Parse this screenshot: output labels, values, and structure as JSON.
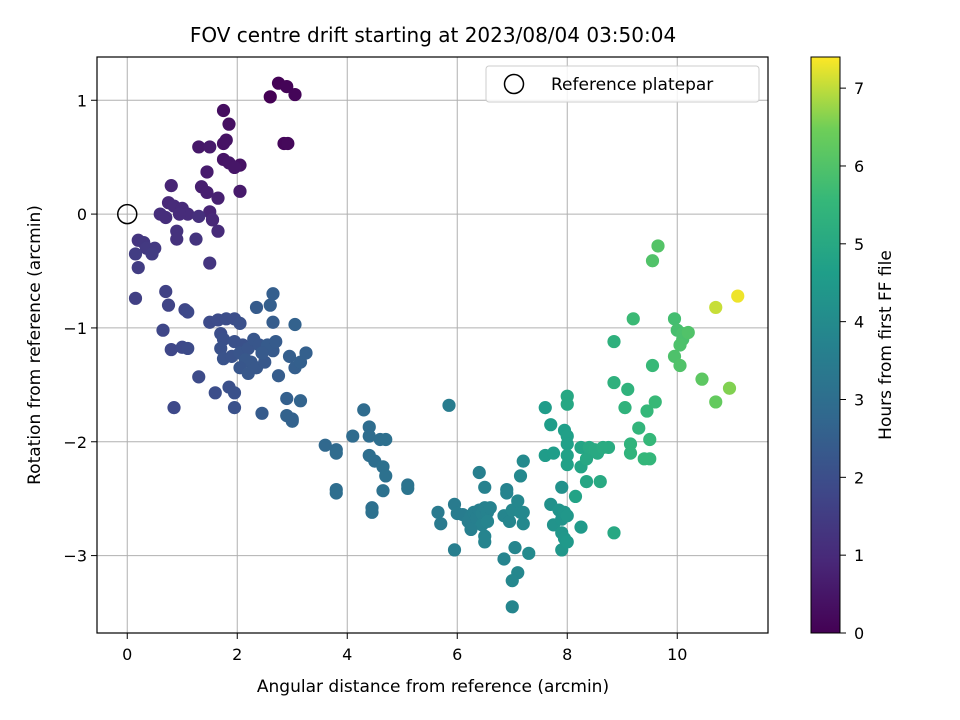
{
  "chart_data": {
    "type": "scatter",
    "title": "FOV centre drift starting at 2023/08/04 03:50:04",
    "xlabel": "Angular distance from reference (arcmin)",
    "ylabel": "Rotation from reference (arcmin)",
    "xlim": [
      -0.55,
      11.65
    ],
    "ylim": [
      -3.68,
      1.38
    ],
    "xticks": [
      0,
      2,
      4,
      6,
      8,
      10
    ],
    "yticks": [
      -3,
      -2,
      -1,
      0,
      1
    ],
    "grid": true,
    "legend": {
      "placement": "upper-right",
      "entries": [
        "Reference platepar"
      ]
    },
    "reference_point": {
      "x": 0,
      "y": 0,
      "marker": "open-circle"
    },
    "colorbar": {
      "label": "Hours from first FF file",
      "colormap": "viridis",
      "range": [
        0,
        7.4
      ],
      "ticks": [
        0,
        1,
        2,
        3,
        4,
        5,
        6,
        7
      ]
    },
    "points": [
      [
        2.6,
        1.03,
        0.0
      ],
      [
        2.75,
        1.15,
        0.05
      ],
      [
        2.9,
        1.12,
        0.08
      ],
      [
        3.05,
        1.05,
        0.1
      ],
      [
        2.85,
        0.62,
        0.15
      ],
      [
        2.92,
        0.62,
        0.18
      ],
      [
        1.75,
        0.91,
        0.3
      ],
      [
        1.85,
        0.79,
        0.35
      ],
      [
        1.75,
        0.62,
        0.4
      ],
      [
        1.8,
        0.65,
        0.42
      ],
      [
        1.3,
        0.59,
        0.55
      ],
      [
        1.5,
        0.59,
        0.6
      ],
      [
        2.05,
        0.43,
        0.4
      ],
      [
        1.75,
        0.48,
        0.45
      ],
      [
        1.85,
        0.45,
        0.5
      ],
      [
        1.95,
        0.41,
        0.5
      ],
      [
        1.45,
        0.37,
        0.65
      ],
      [
        2.05,
        0.2,
        0.6
      ],
      [
        1.35,
        0.24,
        0.7
      ],
      [
        1.45,
        0.19,
        0.72
      ],
      [
        1.65,
        0.14,
        0.75
      ],
      [
        0.8,
        0.25,
        0.85
      ],
      [
        1.5,
        0.02,
        0.85
      ],
      [
        1.55,
        -0.05,
        0.9
      ],
      [
        0.75,
        0.1,
        0.95
      ],
      [
        0.85,
        0.07,
        1.0
      ],
      [
        1.0,
        0.05,
        1.0
      ],
      [
        1.1,
        0.0,
        1.05
      ],
      [
        0.95,
        0.0,
        1.05
      ],
      [
        0.6,
        0.0,
        1.1
      ],
      [
        0.7,
        -0.03,
        1.1
      ],
      [
        1.3,
        -0.02,
        1.15
      ],
      [
        1.55,
        -0.05,
        0.95
      ],
      [
        1.65,
        -0.15,
        1.0
      ],
      [
        0.9,
        -0.15,
        1.2
      ],
      [
        0.9,
        -0.22,
        1.2
      ],
      [
        1.25,
        -0.22,
        1.25
      ],
      [
        1.5,
        -0.43,
        1.3
      ],
      [
        0.2,
        -0.23,
        1.3
      ],
      [
        0.3,
        -0.25,
        1.35
      ],
      [
        0.5,
        -0.3,
        1.4
      ],
      [
        0.35,
        -0.3,
        1.4
      ],
      [
        0.45,
        -0.35,
        1.45
      ],
      [
        0.15,
        -0.35,
        1.5
      ],
      [
        0.2,
        -0.47,
        1.5
      ],
      [
        0.15,
        -0.74,
        1.6
      ],
      [
        0.7,
        -0.68,
        1.65
      ],
      [
        0.75,
        -0.8,
        1.7
      ],
      [
        1.05,
        -0.84,
        1.8
      ],
      [
        1.1,
        -0.86,
        1.85
      ],
      [
        0.65,
        -1.02,
        1.8
      ],
      [
        1.5,
        -0.95,
        1.9
      ],
      [
        0.8,
        -1.19,
        1.8
      ],
      [
        1.0,
        -1.17,
        1.85
      ],
      [
        1.1,
        -1.18,
        1.9
      ],
      [
        1.65,
        -0.93,
        1.95
      ],
      [
        1.8,
        -0.92,
        2.0
      ],
      [
        1.95,
        -0.92,
        2.0
      ],
      [
        2.05,
        -0.96,
        2.05
      ],
      [
        1.7,
        -1.05,
        2.0
      ],
      [
        1.75,
        -1.1,
        2.05
      ],
      [
        1.95,
        -1.12,
        2.1
      ],
      [
        2.1,
        -1.15,
        2.1
      ],
      [
        1.7,
        -1.18,
        2.1
      ],
      [
        1.75,
        -1.27,
        2.15
      ],
      [
        1.9,
        -1.25,
        2.15
      ],
      [
        2.05,
        -1.22,
        2.2
      ],
      [
        2.2,
        -1.18,
        2.2
      ],
      [
        2.3,
        -1.1,
        2.25
      ],
      [
        2.4,
        -1.15,
        2.25
      ],
      [
        2.25,
        -1.3,
        2.3
      ],
      [
        2.35,
        -1.35,
        2.3
      ],
      [
        2.5,
        -1.3,
        2.3
      ],
      [
        2.65,
        -1.2,
        2.35
      ],
      [
        2.55,
        -1.15,
        2.4
      ],
      [
        2.7,
        -1.12,
        2.4
      ],
      [
        2.45,
        -1.22,
        2.35
      ],
      [
        2.15,
        -1.28,
        2.3
      ],
      [
        2.05,
        -1.35,
        2.25
      ],
      [
        2.2,
        -1.4,
        2.3
      ],
      [
        2.75,
        -1.42,
        2.45
      ],
      [
        2.95,
        -1.25,
        2.5
      ],
      [
        3.05,
        -1.35,
        2.5
      ],
      [
        3.15,
        -1.3,
        2.55
      ],
      [
        3.25,
        -1.22,
        2.55
      ],
      [
        3.05,
        -0.97,
        2.6
      ],
      [
        2.65,
        -0.95,
        2.45
      ],
      [
        2.6,
        -0.8,
        2.5
      ],
      [
        2.65,
        -0.7,
        2.5
      ],
      [
        2.35,
        -0.82,
        2.4
      ],
      [
        1.3,
        -1.43,
        1.9
      ],
      [
        1.6,
        -1.57,
        2.0
      ],
      [
        1.85,
        -1.52,
        2.05
      ],
      [
        1.95,
        -1.57,
        2.1
      ],
      [
        1.95,
        -1.7,
        2.1
      ],
      [
        0.85,
        -1.7,
        1.85
      ],
      [
        2.45,
        -1.75,
        2.4
      ],
      [
        2.9,
        -1.62,
        2.55
      ],
      [
        2.9,
        -1.77,
        2.6
      ],
      [
        3.0,
        -1.82,
        2.65
      ],
      [
        3.15,
        -1.64,
        2.65
      ],
      [
        3.0,
        -1.8,
        2.6
      ],
      [
        3.6,
        -2.03,
        2.8
      ],
      [
        3.8,
        -2.07,
        2.85
      ],
      [
        3.8,
        -2.1,
        2.9
      ],
      [
        4.1,
        -1.95,
        2.9
      ],
      [
        4.3,
        -1.72,
        2.9
      ],
      [
        4.4,
        -1.87,
        2.95
      ],
      [
        4.4,
        -1.95,
        2.95
      ],
      [
        4.6,
        -1.98,
        3.0
      ],
      [
        4.7,
        -1.98,
        3.05
      ],
      [
        4.4,
        -2.12,
        3.0
      ],
      [
        4.5,
        -2.17,
        3.0
      ],
      [
        4.65,
        -2.22,
        3.05
      ],
      [
        4.7,
        -2.3,
        3.1
      ],
      [
        3.8,
        -2.42,
        2.95
      ],
      [
        3.8,
        -2.45,
        3.0
      ],
      [
        4.45,
        -2.58,
        3.05
      ],
      [
        4.45,
        -2.62,
        3.1
      ],
      [
        4.65,
        -2.43,
        3.1
      ],
      [
        5.1,
        -2.38,
        3.15
      ],
      [
        5.1,
        -2.41,
        3.2
      ],
      [
        5.85,
        -1.68,
        3.5
      ],
      [
        5.65,
        -2.62,
        3.4
      ],
      [
        5.7,
        -2.72,
        3.4
      ],
      [
        5.95,
        -2.55,
        3.45
      ],
      [
        6.0,
        -2.63,
        3.5
      ],
      [
        6.1,
        -2.64,
        3.5
      ],
      [
        6.2,
        -2.7,
        3.55
      ],
      [
        6.25,
        -2.65,
        3.55
      ],
      [
        6.3,
        -2.62,
        3.6
      ],
      [
        6.35,
        -2.67,
        3.6
      ],
      [
        6.4,
        -2.6,
        3.6
      ],
      [
        6.45,
        -2.63,
        3.65
      ],
      [
        6.5,
        -2.58,
        3.65
      ],
      [
        6.55,
        -2.62,
        3.7
      ],
      [
        6.6,
        -2.58,
        3.7
      ],
      [
        6.45,
        -2.73,
        3.7
      ],
      [
        6.5,
        -2.83,
        3.75
      ],
      [
        6.5,
        -2.88,
        3.75
      ],
      [
        6.55,
        -2.7,
        3.75
      ],
      [
        6.4,
        -2.27,
        3.6
      ],
      [
        6.5,
        -2.4,
        3.65
      ],
      [
        6.25,
        -2.77,
        3.6
      ],
      [
        5.95,
        -2.95,
        3.55
      ],
      [
        6.9,
        -2.42,
        3.7
      ],
      [
        6.9,
        -2.45,
        3.75
      ],
      [
        6.85,
        -2.65,
        3.8
      ],
      [
        6.95,
        -2.7,
        3.8
      ],
      [
        7.0,
        -2.6,
        3.85
      ],
      [
        7.1,
        -2.52,
        3.85
      ],
      [
        7.15,
        -2.62,
        3.9
      ],
      [
        7.2,
        -2.72,
        3.9
      ],
      [
        7.15,
        -2.3,
        3.9
      ],
      [
        7.2,
        -2.17,
        3.95
      ],
      [
        7.2,
        -2.62,
        3.9
      ],
      [
        6.85,
        -3.03,
        3.75
      ],
      [
        7.05,
        -2.93,
        3.8
      ],
      [
        7.1,
        -3.15,
        3.85
      ],
      [
        7.0,
        -3.22,
        3.85
      ],
      [
        7.3,
        -2.98,
        3.95
      ],
      [
        7.0,
        -3.45,
        3.8
      ],
      [
        7.9,
        -2.4,
        4.2
      ],
      [
        7.7,
        -2.55,
        4.2
      ],
      [
        7.75,
        -2.73,
        4.25
      ],
      [
        7.85,
        -2.6,
        4.3
      ],
      [
        7.9,
        -2.68,
        4.3
      ],
      [
        7.95,
        -2.62,
        4.35
      ],
      [
        7.9,
        -2.8,
        4.35
      ],
      [
        7.95,
        -2.85,
        4.4
      ],
      [
        7.9,
        -2.95,
        4.4
      ],
      [
        8.0,
        -2.88,
        4.45
      ],
      [
        8.25,
        -2.75,
        4.5
      ],
      [
        8.0,
        -2.65,
        4.4
      ],
      [
        7.6,
        -1.7,
        4.55
      ],
      [
        7.7,
        -1.85,
        4.6
      ],
      [
        7.6,
        -2.12,
        4.55
      ],
      [
        7.75,
        -2.1,
        4.6
      ],
      [
        7.95,
        -1.9,
        4.65
      ],
      [
        8.0,
        -1.95,
        4.7
      ],
      [
        8.0,
        -2.02,
        4.7
      ],
      [
        8.0,
        -2.12,
        4.75
      ],
      [
        8.0,
        -2.2,
        4.75
      ],
      [
        8.15,
        -2.48,
        4.8
      ],
      [
        8.25,
        -2.05,
        4.85
      ],
      [
        8.25,
        -2.22,
        4.85
      ],
      [
        8.35,
        -2.35,
        4.9
      ],
      [
        8.35,
        -2.15,
        4.95
      ],
      [
        8.4,
        -2.05,
        5.0
      ],
      [
        8.55,
        -2.1,
        5.05
      ],
      [
        8.5,
        -2.07,
        5.05
      ],
      [
        8.65,
        -2.05,
        5.1
      ],
      [
        8.75,
        -2.05,
        5.1
      ],
      [
        8.6,
        -2.35,
        5.05
      ],
      [
        8.0,
        -1.6,
        4.95
      ],
      [
        8.0,
        -1.67,
        4.95
      ],
      [
        8.85,
        -1.12,
        5.3
      ],
      [
        8.85,
        -1.48,
        5.3
      ],
      [
        8.85,
        -2.8,
        5.0
      ],
      [
        9.05,
        -1.7,
        5.35
      ],
      [
        9.1,
        -1.54,
        5.35
      ],
      [
        9.15,
        -2.02,
        5.4
      ],
      [
        9.15,
        -2.1,
        5.4
      ],
      [
        9.3,
        -1.88,
        5.45
      ],
      [
        9.4,
        -2.15,
        5.5
      ],
      [
        9.5,
        -2.15,
        5.5
      ],
      [
        9.5,
        -1.98,
        5.55
      ],
      [
        9.45,
        -1.73,
        5.55
      ],
      [
        9.55,
        -1.33,
        5.6
      ],
      [
        9.6,
        -1.65,
        5.6
      ],
      [
        9.2,
        -0.92,
        5.65
      ],
      [
        9.95,
        -0.92,
        5.8
      ],
      [
        10.0,
        -1.02,
        5.85
      ],
      [
        10.1,
        -1.05,
        5.9
      ],
      [
        10.1,
        -1.1,
        5.9
      ],
      [
        10.05,
        -1.15,
        5.95
      ],
      [
        9.95,
        -1.25,
        5.95
      ],
      [
        10.05,
        -1.33,
        6.0
      ],
      [
        10.2,
        -1.04,
        6.0
      ],
      [
        10.45,
        -1.45,
        6.2
      ],
      [
        10.7,
        -1.65,
        6.3
      ],
      [
        10.95,
        -1.53,
        6.6
      ],
      [
        9.55,
        -0.41,
        6.0
      ],
      [
        9.65,
        -0.28,
        6.05
      ],
      [
        10.7,
        -0.82,
        7.05
      ],
      [
        11.1,
        -0.72,
        7.3
      ]
    ]
  }
}
